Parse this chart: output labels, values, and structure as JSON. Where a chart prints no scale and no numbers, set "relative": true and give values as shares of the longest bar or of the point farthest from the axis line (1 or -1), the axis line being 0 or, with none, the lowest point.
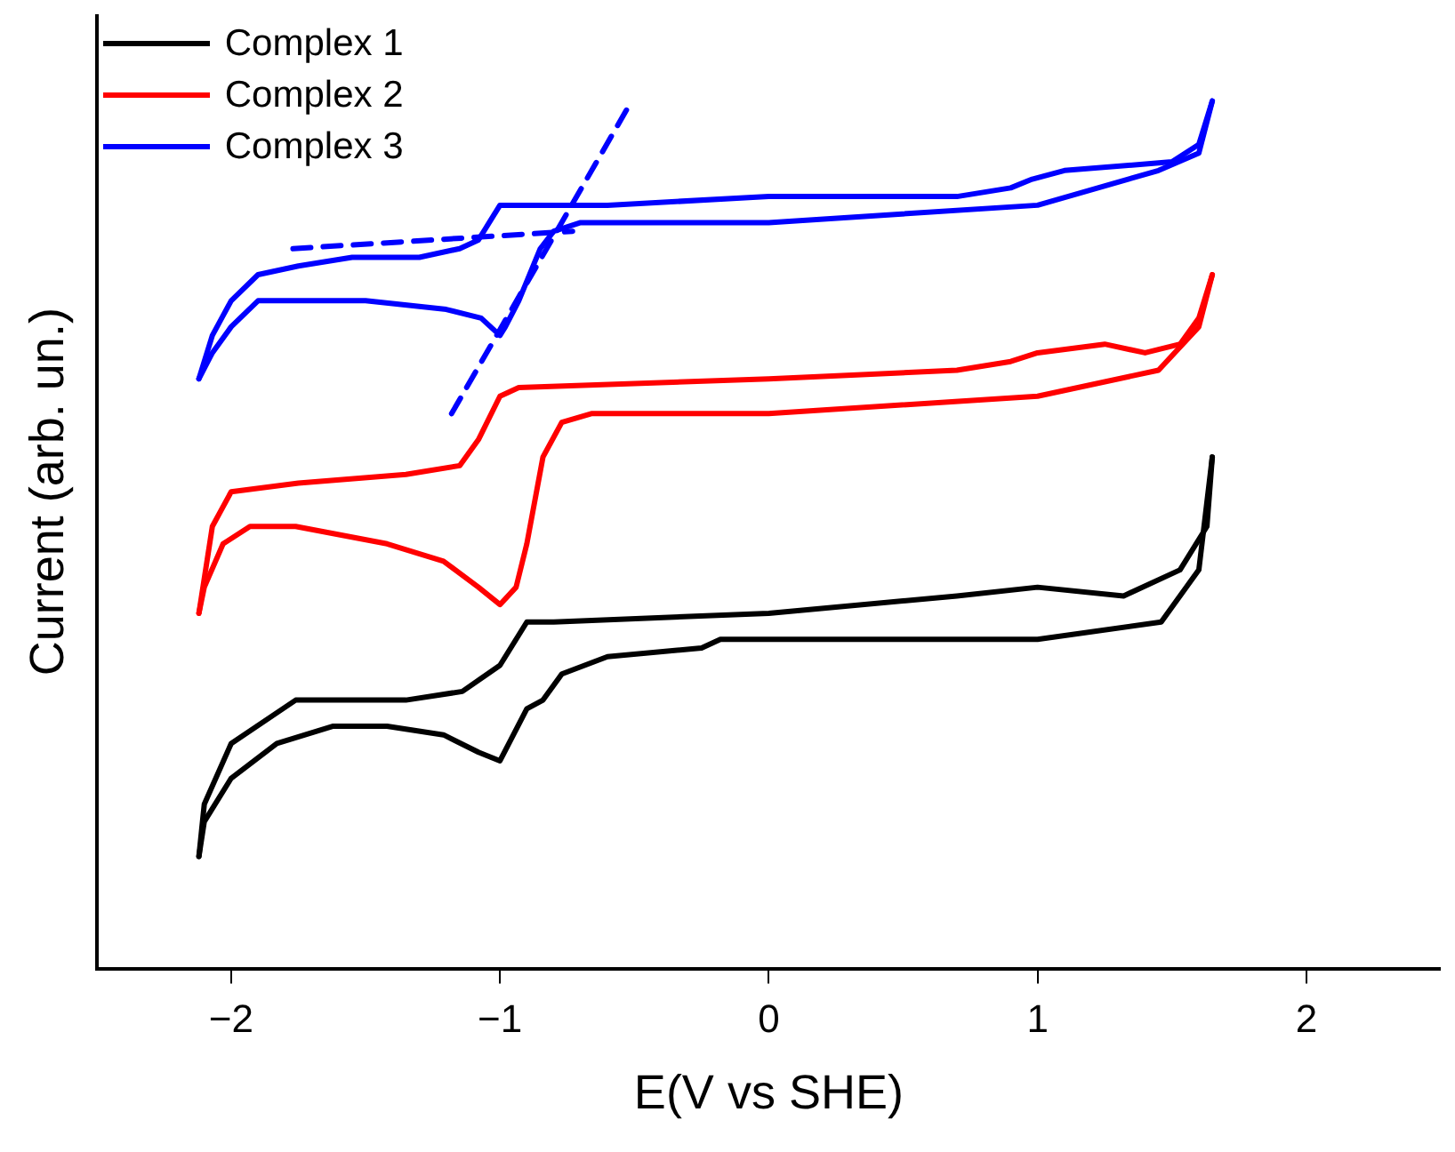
{
  "chart_data": {
    "type": "line",
    "xlabel": "E(V vs SHE)",
    "ylabel": "Current (arb. un.)",
    "relative": true,
    "xlim": [
      -2.5,
      2.5
    ],
    "xticks": [
      -2,
      -1,
      0,
      1,
      2
    ],
    "grid": false,
    "legend": "top left",
    "marker": "none",
    "line_style": "solid",
    "series": [
      {
        "name": "Complex 1",
        "color": "#000000",
        "x": [
          -2.12,
          -2.1,
          -2.0,
          -1.76,
          -1.35,
          -1.14,
          -1.0,
          -0.9,
          -0.8,
          0,
          0.7,
          1.0,
          1.32,
          1.53,
          1.63,
          1.65
        ],
        "values": [
          0.13,
          0.19,
          0.26,
          0.31,
          0.31,
          0.32,
          0.35,
          0.4,
          0.4,
          0.41,
          0.43,
          0.44,
          0.43,
          0.46,
          0.51,
          0.59
        ]
      },
      {
        "color": "#000000",
        "x": [
          -2.12,
          -2.1,
          -2.0,
          -1.83,
          -1.62,
          -1.42,
          -1.21,
          -1.08,
          -1.0,
          -0.9,
          -0.84,
          -0.77,
          -0.6,
          -0.25,
          -0.18,
          1.0,
          1.46,
          1.6,
          1.65
        ],
        "values": [
          0.13,
          0.17,
          0.22,
          0.26,
          0.28,
          0.28,
          0.27,
          0.25,
          0.24,
          0.3,
          0.31,
          0.34,
          0.36,
          0.37,
          0.38,
          0.38,
          0.4,
          0.46,
          0.59
        ]
      },
      {
        "name": "Complex 2",
        "color": "#ff0000",
        "x": [
          -2.12,
          -2.07,
          -2.0,
          -1.75,
          -1.35,
          -1.15,
          -1.08,
          -1.0,
          -0.93,
          0,
          0.7,
          0.9,
          1.0,
          1.25,
          1.4,
          1.53,
          1.6,
          1.65
        ],
        "values": [
          0.41,
          0.51,
          0.55,
          0.56,
          0.57,
          0.58,
          0.61,
          0.66,
          0.67,
          0.68,
          0.69,
          0.7,
          0.71,
          0.72,
          0.71,
          0.72,
          0.75,
          0.8
        ]
      },
      {
        "color": "#ff0000",
        "x": [
          -2.12,
          -2.1,
          -2.03,
          -1.93,
          -1.76,
          -1.42,
          -1.21,
          -1.08,
          -1.0,
          -0.94,
          -0.9,
          -0.84,
          -0.77,
          -0.66,
          0,
          1.0,
          1.45,
          1.6,
          1.65
        ],
        "values": [
          0.41,
          0.44,
          0.49,
          0.51,
          0.51,
          0.49,
          0.47,
          0.44,
          0.42,
          0.44,
          0.49,
          0.59,
          0.63,
          0.64,
          0.64,
          0.66,
          0.69,
          0.74,
          0.8
        ]
      },
      {
        "name": "Complex 3",
        "color": "#0000ff",
        "x": [
          -2.12,
          -2.07,
          -2.0,
          -1.9,
          -1.75,
          -1.55,
          -1.3,
          -1.15,
          -1.08,
          -1.04,
          -1.0,
          -0.93,
          -0.6,
          0,
          0.7,
          0.9,
          0.98,
          1.1,
          1.5,
          1.6,
          1.65
        ],
        "values": [
          0.68,
          0.73,
          0.77,
          0.8,
          0.81,
          0.82,
          0.82,
          0.83,
          0.84,
          0.86,
          0.88,
          0.88,
          0.88,
          0.89,
          0.89,
          0.9,
          0.91,
          0.92,
          0.93,
          0.95,
          1.0
        ]
      },
      {
        "color": "#0000ff",
        "x": [
          -2.12,
          -2.07,
          -2.0,
          -1.9,
          -1.75,
          -1.5,
          -1.2,
          -1.07,
          -1.0,
          -0.98,
          -0.93,
          -0.85,
          -0.8,
          -0.7,
          0,
          1.0,
          1.45,
          1.6,
          1.65
        ],
        "values": [
          0.68,
          0.71,
          0.74,
          0.77,
          0.77,
          0.77,
          0.76,
          0.75,
          0.73,
          0.74,
          0.77,
          0.83,
          0.85,
          0.86,
          0.86,
          0.88,
          0.92,
          0.94,
          1.0
        ]
      },
      {
        "type": "line",
        "color": "#0000ff",
        "line_style": "dashed",
        "x": [
          -1.77,
          -0.73
        ],
        "values": [
          0.83,
          0.85
        ]
      },
      {
        "type": "line",
        "color": "#0000ff",
        "line_style": "dashed",
        "x": [
          -1.18,
          -0.51
        ],
        "values": [
          0.64,
          1.0
        ]
      }
    ]
  }
}
